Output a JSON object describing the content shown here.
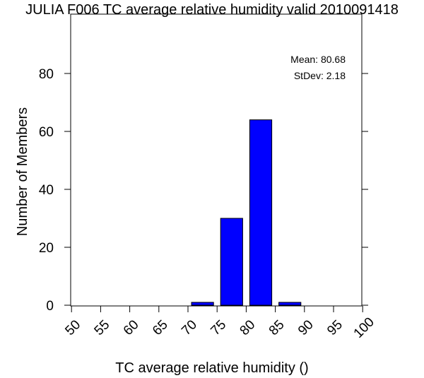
{
  "chart_data": {
    "type": "bar",
    "title": "JULIA F006 TC average relative humidity valid 2010091418",
    "xlabel": "TC average relative humidity ()",
    "ylabel": "Number of Members",
    "x_ticks": [
      50,
      55,
      60,
      65,
      70,
      75,
      80,
      85,
      90,
      95,
      100
    ],
    "xlim": [
      50,
      100
    ],
    "y_ticks": [
      0,
      20,
      40,
      60,
      80
    ],
    "ylim": [
      0,
      96
    ],
    "bin_width": 5,
    "bins": [
      {
        "start": 70,
        "end": 75,
        "count": 1
      },
      {
        "start": 75,
        "end": 80,
        "count": 30
      },
      {
        "start": 80,
        "end": 85,
        "count": 64
      },
      {
        "start": 85,
        "end": 90,
        "count": 1
      }
    ],
    "bar_color": "#0000ff",
    "stats": {
      "mean_text": "Mean: 80.68",
      "stdev_text": "StDev: 2.18"
    },
    "grid": false
  }
}
